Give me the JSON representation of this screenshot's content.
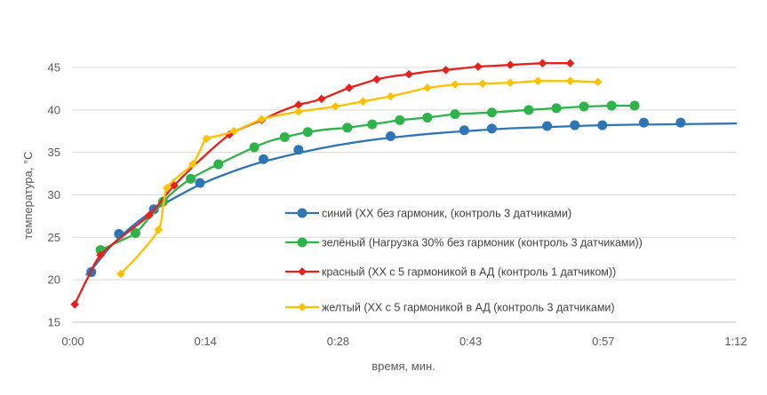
{
  "chart_data": {
    "type": "line",
    "xlabel": "время,  мин.",
    "ylabel": "температура, °C",
    "xlim": [
      0,
      72
    ],
    "ylim": [
      15,
      47
    ],
    "x_ticks": [
      {
        "value": 0,
        "label": "0:00"
      },
      {
        "value": 14.4,
        "label": "0:14"
      },
      {
        "value": 28.8,
        "label": "0:28"
      },
      {
        "value": 43.2,
        "label": "0:43"
      },
      {
        "value": 57.6,
        "label": "0:57"
      },
      {
        "value": 72,
        "label": "1:12"
      }
    ],
    "y_ticks": [
      15,
      20,
      25,
      30,
      35,
      40,
      45
    ],
    "grid": "horizontal",
    "legend_position": "inside-bottom-right",
    "series": [
      {
        "name": "синий  (ХХ без гармоник, (контроль 3 датчиками)",
        "color": "#2E75B6",
        "marker": "circle",
        "points": [
          [
            2.0,
            20.9
          ],
          [
            5.0,
            25.4
          ],
          [
            8.8,
            28.3
          ],
          [
            13.8,
            31.4
          ],
          [
            20.7,
            34.2
          ],
          [
            24.5,
            35.3
          ],
          [
            34.5,
            36.9
          ],
          [
            42.5,
            37.6
          ],
          [
            45.5,
            37.8
          ],
          [
            51.5,
            38.1
          ],
          [
            54.5,
            38.2
          ],
          [
            57.5,
            38.2
          ],
          [
            62.0,
            38.5
          ],
          [
            66.0,
            38.5
          ]
        ],
        "curve": [
          [
            1.5,
            20.6
          ],
          [
            2.5,
            21.8
          ],
          [
            4,
            23.8
          ],
          [
            6,
            25.9
          ],
          [
            8,
            27.6
          ],
          [
            10,
            29.0
          ],
          [
            12,
            30.2
          ],
          [
            14,
            31.3
          ],
          [
            17,
            32.6
          ],
          [
            20,
            33.7
          ],
          [
            24,
            34.8
          ],
          [
            28,
            35.7
          ],
          [
            32,
            36.4
          ],
          [
            36,
            36.9
          ],
          [
            40,
            37.3
          ],
          [
            44,
            37.6
          ],
          [
            48,
            37.85
          ],
          [
            52,
            38.0
          ],
          [
            56,
            38.15
          ],
          [
            60,
            38.25
          ],
          [
            64,
            38.3
          ],
          [
            68,
            38.35
          ],
          [
            72,
            38.4
          ]
        ]
      },
      {
        "name": "зелёный (Нагрузка 30% без гармоник (контроль 3 датчиками))",
        "color": "#2DB34A",
        "marker": "circle",
        "points": [
          [
            3.0,
            23.5
          ],
          [
            6.8,
            25.5
          ],
          [
            9.8,
            29.2
          ],
          [
            12.8,
            31.9
          ],
          [
            15.8,
            33.6
          ],
          [
            19.7,
            35.6
          ],
          [
            23.0,
            36.8
          ],
          [
            25.5,
            37.4
          ],
          [
            29.8,
            37.9
          ],
          [
            32.5,
            38.3
          ],
          [
            35.5,
            38.8
          ],
          [
            38.5,
            39.1
          ],
          [
            41.5,
            39.5
          ],
          [
            45.5,
            39.7
          ],
          [
            49.5,
            40.0
          ],
          [
            52.5,
            40.2
          ],
          [
            55.5,
            40.4
          ],
          [
            58.5,
            40.5
          ],
          [
            61.0,
            40.5
          ]
        ],
        "curve": [
          [
            3,
            23.5
          ],
          [
            5,
            24.5
          ],
          [
            6.8,
            25.5
          ],
          [
            8.2,
            27.2
          ],
          [
            9.8,
            29.2
          ],
          [
            11.3,
            30.7
          ],
          [
            12.8,
            31.9
          ],
          [
            14.3,
            32.8
          ],
          [
            15.8,
            33.6
          ],
          [
            17.7,
            34.6
          ],
          [
            19.7,
            35.6
          ],
          [
            21.3,
            36.3
          ],
          [
            23,
            36.8
          ],
          [
            24.2,
            37.1
          ],
          [
            25.5,
            37.4
          ],
          [
            27.6,
            37.7
          ],
          [
            29.8,
            37.9
          ],
          [
            31.1,
            38.1
          ],
          [
            32.5,
            38.3
          ],
          [
            34,
            38.55
          ],
          [
            35.5,
            38.8
          ],
          [
            37,
            38.95
          ],
          [
            38.5,
            39.1
          ],
          [
            40,
            39.3
          ],
          [
            41.5,
            39.5
          ],
          [
            43.5,
            39.6
          ],
          [
            45.5,
            39.7
          ],
          [
            47.5,
            39.85
          ],
          [
            49.5,
            40.0
          ],
          [
            51,
            40.1
          ],
          [
            52.5,
            40.2
          ],
          [
            54,
            40.3
          ],
          [
            55.5,
            40.4
          ],
          [
            57,
            40.45
          ],
          [
            58.5,
            40.5
          ],
          [
            59.8,
            40.5
          ],
          [
            61,
            40.5
          ]
        ]
      },
      {
        "name": "красный (ХХ с 5 гармоникой в АД (контроль 1 датчиком))",
        "color": "#E8201C",
        "marker": "diamond",
        "points": [
          [
            0.2,
            17.1
          ],
          [
            3.0,
            22.9
          ],
          [
            8.3,
            27.6
          ],
          [
            11.0,
            31.1
          ],
          [
            17.0,
            37.1
          ],
          [
            20.5,
            38.8
          ],
          [
            24.5,
            40.6
          ],
          [
            27.0,
            41.3
          ],
          [
            30.0,
            42.6
          ],
          [
            33.0,
            43.6
          ],
          [
            36.5,
            44.2
          ],
          [
            40.5,
            44.7
          ],
          [
            44.0,
            45.1
          ],
          [
            47.5,
            45.3
          ],
          [
            51.0,
            45.5
          ],
          [
            54.0,
            45.5
          ]
        ],
        "curve": [
          [
            0.2,
            17.1
          ],
          [
            1.6,
            20.2
          ],
          [
            3,
            22.9
          ],
          [
            5.6,
            25.3
          ],
          [
            8.3,
            27.6
          ],
          [
            9.6,
            29.3
          ],
          [
            11,
            31.1
          ],
          [
            14,
            34.3
          ],
          [
            17,
            37.1
          ],
          [
            18.7,
            38.0
          ],
          [
            20.5,
            38.8
          ],
          [
            22.5,
            39.8
          ],
          [
            24.5,
            40.6
          ],
          [
            25.7,
            40.9
          ],
          [
            27,
            41.3
          ],
          [
            28.5,
            41.95
          ],
          [
            30,
            42.6
          ],
          [
            31.5,
            43.1
          ],
          [
            33,
            43.6
          ],
          [
            34.7,
            43.95
          ],
          [
            36.5,
            44.2
          ],
          [
            38.5,
            44.5
          ],
          [
            40.5,
            44.7
          ],
          [
            42.2,
            44.9
          ],
          [
            44,
            45.1
          ],
          [
            45.7,
            45.2
          ],
          [
            47.5,
            45.3
          ],
          [
            49.2,
            45.4
          ],
          [
            51,
            45.5
          ],
          [
            52.5,
            45.5
          ],
          [
            54,
            45.5
          ]
        ]
      },
      {
        "name": "желтый (ХХ с 5 гармоникой в АД (контроль 3 датчиками)",
        "color": "#FFC000",
        "marker": "diamond",
        "points": [
          [
            5.2,
            20.7
          ],
          [
            9.3,
            25.9
          ],
          [
            10.2,
            30.8
          ],
          [
            13.0,
            33.6
          ],
          [
            14.5,
            36.6
          ],
          [
            17.5,
            37.5
          ],
          [
            20.5,
            38.9
          ],
          [
            24.5,
            39.8
          ],
          [
            28.5,
            40.4
          ],
          [
            31.5,
            41.0
          ],
          [
            34.5,
            41.6
          ],
          [
            38.5,
            42.6
          ],
          [
            41.5,
            43.0
          ],
          [
            44.5,
            43.1
          ],
          [
            47.5,
            43.2
          ],
          [
            50.5,
            43.4
          ],
          [
            54.0,
            43.4
          ],
          [
            57.0,
            43.3
          ]
        ],
        "curve": [
          [
            5.2,
            20.7
          ],
          [
            7.3,
            23.1
          ],
          [
            9.3,
            25.9
          ],
          [
            9.8,
            28.6
          ],
          [
            10.2,
            30.8
          ],
          [
            11.6,
            32.3
          ],
          [
            13,
            33.6
          ],
          [
            13.8,
            35.2
          ],
          [
            14.5,
            36.6
          ],
          [
            16,
            37.0
          ],
          [
            17.5,
            37.5
          ],
          [
            19,
            38.2
          ],
          [
            20.5,
            38.9
          ],
          [
            22.5,
            39.4
          ],
          [
            24.5,
            39.8
          ],
          [
            26.5,
            40.1
          ],
          [
            28.5,
            40.4
          ],
          [
            30,
            40.7
          ],
          [
            31.5,
            41.0
          ],
          [
            33,
            41.3
          ],
          [
            34.5,
            41.6
          ],
          [
            36.5,
            42.1
          ],
          [
            38.5,
            42.6
          ],
          [
            40,
            42.8
          ],
          [
            41.5,
            43.0
          ],
          [
            43,
            43.05
          ],
          [
            44.5,
            43.1
          ],
          [
            46,
            43.15
          ],
          [
            47.5,
            43.2
          ],
          [
            49,
            43.3
          ],
          [
            50.5,
            43.4
          ],
          [
            52.2,
            43.4
          ],
          [
            54,
            43.4
          ],
          [
            55.5,
            43.35
          ],
          [
            57,
            43.3
          ]
        ]
      }
    ]
  }
}
